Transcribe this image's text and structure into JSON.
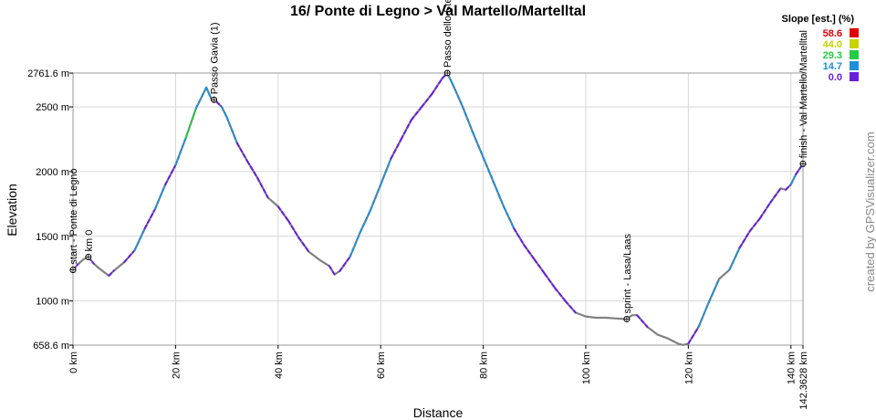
{
  "chart_data": {
    "type": "line",
    "title": "16/ Ponte di Legno > Val Martello/Martelltal",
    "xlabel": "Distance",
    "ylabel": "Elevation",
    "xlim": [
      0,
      142.3628
    ],
    "ylim": [
      658.6,
      2761.6
    ],
    "x_ticks": [
      {
        "value": 0,
        "label": "0 km"
      },
      {
        "value": 20,
        "label": "20 km"
      },
      {
        "value": 40,
        "label": "40 km"
      },
      {
        "value": 60,
        "label": "60 km"
      },
      {
        "value": 80,
        "label": "80 km"
      },
      {
        "value": 100,
        "label": "100 km"
      },
      {
        "value": 120,
        "label": "120 km"
      },
      {
        "value": 140,
        "label": "140 km"
      },
      {
        "value": 142.3628,
        "label": "142.3628 km"
      }
    ],
    "y_ticks": [
      {
        "value": 658.6,
        "label": "658.6 m"
      },
      {
        "value": 1000,
        "label": "1000 m"
      },
      {
        "value": 1500,
        "label": "1500 m"
      },
      {
        "value": 2000,
        "label": "2000 m"
      },
      {
        "value": 2500,
        "label": "2500 m"
      },
      {
        "value": 2761.6,
        "label": "2761.6 m"
      }
    ],
    "grid": true,
    "line_color": "#808080",
    "points": [
      [
        0,
        1240
      ],
      [
        1,
        1285
      ],
      [
        2,
        1320
      ],
      [
        3,
        1340
      ],
      [
        4,
        1290
      ],
      [
        5,
        1255
      ],
      [
        6,
        1225
      ],
      [
        7,
        1195
      ],
      [
        8,
        1235
      ],
      [
        10,
        1300
      ],
      [
        12,
        1390
      ],
      [
        14,
        1560
      ],
      [
        16,
        1710
      ],
      [
        18,
        1900
      ],
      [
        20,
        2050
      ],
      [
        22,
        2260
      ],
      [
        24,
        2490
      ],
      [
        26,
        2650
      ],
      [
        27,
        2560
      ],
      [
        28,
        2540
      ],
      [
        29,
        2500
      ],
      [
        30,
        2420
      ],
      [
        32,
        2220
      ],
      [
        34,
        2080
      ],
      [
        36,
        1950
      ],
      [
        38,
        1800
      ],
      [
        40,
        1730
      ],
      [
        42,
        1620
      ],
      [
        44,
        1490
      ],
      [
        46,
        1380
      ],
      [
        48,
        1320
      ],
      [
        50,
        1270
      ],
      [
        51,
        1205
      ],
      [
        52,
        1230
      ],
      [
        54,
        1340
      ],
      [
        56,
        1530
      ],
      [
        58,
        1700
      ],
      [
        60,
        1900
      ],
      [
        62,
        2100
      ],
      [
        64,
        2250
      ],
      [
        66,
        2400
      ],
      [
        68,
        2500
      ],
      [
        70,
        2600
      ],
      [
        72,
        2720
      ],
      [
        73,
        2761.6
      ],
      [
        74,
        2680
      ],
      [
        76,
        2500
      ],
      [
        78,
        2300
      ],
      [
        80,
        2110
      ],
      [
        82,
        1920
      ],
      [
        84,
        1730
      ],
      [
        86,
        1560
      ],
      [
        88,
        1430
      ],
      [
        90,
        1320
      ],
      [
        92,
        1210
      ],
      [
        94,
        1100
      ],
      [
        96,
        1000
      ],
      [
        98,
        910
      ],
      [
        100,
        880
      ],
      [
        102,
        870
      ],
      [
        104,
        870
      ],
      [
        106,
        865
      ],
      [
        108,
        860
      ],
      [
        109,
        890
      ],
      [
        110,
        890
      ],
      [
        112,
        800
      ],
      [
        114,
        740
      ],
      [
        116,
        710
      ],
      [
        118,
        670
      ],
      [
        119,
        660
      ],
      [
        120,
        670
      ],
      [
        122,
        800
      ],
      [
        124,
        990
      ],
      [
        126,
        1170
      ],
      [
        128,
        1240
      ],
      [
        130,
        1410
      ],
      [
        132,
        1540
      ],
      [
        134,
        1640
      ],
      [
        136,
        1760
      ],
      [
        138,
        1870
      ],
      [
        139,
        1860
      ],
      [
        140,
        1900
      ],
      [
        141,
        1980
      ],
      [
        142.3628,
        2060
      ]
    ],
    "markers": [
      {
        "label": "start - Ponte di Legno",
        "x": 0,
        "y": 1240
      },
      {
        "label": "km 0",
        "x": 3,
        "y": 1340
      },
      {
        "label": "Passo Gavia (1)",
        "x": 27.5,
        "y": 2555
      },
      {
        "label": "Passo dello Stelvio",
        "x": 73,
        "y": 2761.6
      },
      {
        "label": "sprint - Lasa/Laas",
        "x": 108,
        "y": 860
      },
      {
        "label": "finish - Val Martello/Martelltal",
        "x": 142.3628,
        "y": 2060
      }
    ],
    "legend": {
      "title": "Slope [est.] (%)",
      "position": "top-right",
      "items": [
        {
          "value": "58.6",
          "color": "#e00000"
        },
        {
          "value": "44.0",
          "color": "#c8d400"
        },
        {
          "value": "29.3",
          "color": "#22cc44"
        },
        {
          "value": "14.7",
          "color": "#1e8fd8"
        },
        {
          "value": "0.0",
          "color": "#6a1ee0"
        }
      ]
    },
    "credit": "created by GPSVisualizer.com"
  }
}
